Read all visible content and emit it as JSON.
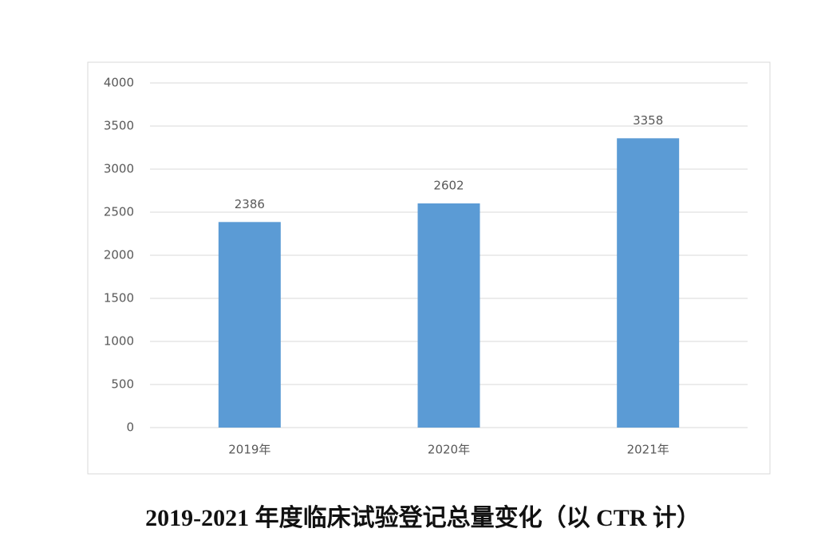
{
  "chart_data": {
    "type": "bar",
    "title": "2019-2021 年度临床试验登记总量变化（以 CTR 计）",
    "categories": [
      "2019年",
      "2020年",
      "2021年"
    ],
    "values": [
      2386,
      2602,
      3358
    ],
    "color": "#5b9bd5",
    "ylim": [
      0,
      4000
    ],
    "yticks": [
      0,
      500,
      1000,
      1500,
      2000,
      2500,
      3000,
      3500,
      4000
    ],
    "grid": true
  }
}
